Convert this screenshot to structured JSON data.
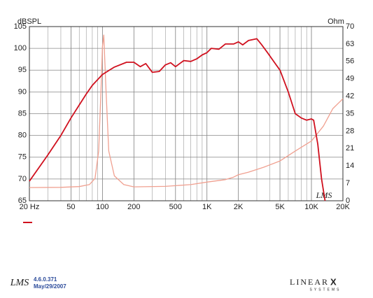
{
  "chart_data": {
    "type": "line",
    "log_x": true,
    "grid": true,
    "ylabel": "dBSPL",
    "y2label": "Ohm",
    "xlim": [
      20,
      20000
    ],
    "xticks": [
      {
        "value": 20,
        "label": "20  Hz"
      },
      50,
      100,
      200,
      500,
      {
        "value": 1000,
        "label": "1K"
      },
      {
        "value": 2000,
        "label": "2K"
      },
      {
        "value": 5000,
        "label": "5K"
      },
      {
        "value": 10000,
        "label": "10K"
      },
      {
        "value": 20000,
        "label": "20K"
      }
    ],
    "ylim": [
      65,
      105
    ],
    "yticks": [
      65,
      70,
      75,
      80,
      85,
      90,
      95,
      100,
      105
    ],
    "y2lim": [
      0,
      70
    ],
    "y2ticks": [
      0,
      7,
      14,
      21,
      28,
      35,
      42,
      49,
      56,
      63,
      70
    ],
    "series": [
      {
        "color": "#d0101e",
        "x": [
          20,
          30,
          40,
          50,
          60,
          70,
          80,
          100,
          130,
          170,
          200,
          230,
          260,
          300,
          350,
          400,
          450,
          500,
          600,
          700,
          800,
          900,
          1000,
          1100,
          1300,
          1500,
          1800,
          2000,
          2200,
          2500,
          3000,
          3300,
          3800,
          4500,
          5000,
          6000,
          7000,
          8000,
          9000,
          10000,
          10500,
          11500,
          12500,
          13500
        ],
        "values": [
          69.5,
          75.5,
          80,
          84,
          87,
          89.5,
          91.5,
          94,
          95.7,
          96.8,
          96.8,
          95.8,
          96.5,
          94.5,
          94.7,
          96.2,
          96.7,
          95.8,
          97.2,
          97,
          97.6,
          98.5,
          99,
          100,
          99.8,
          101,
          101,
          101.5,
          100.8,
          101.8,
          102.2,
          101,
          99,
          96.5,
          95,
          90,
          85,
          84,
          83.5,
          83.8,
          83.5,
          78,
          70,
          65
        ]
      },
      {
        "color": "#f0a090",
        "axis": "y2",
        "x": [
          20,
          40,
          60,
          75,
          85,
          92,
          97,
          100,
          103,
          108,
          115,
          130,
          160,
          200,
          400,
          700,
          1000,
          1500,
          1800,
          2000,
          2500,
          3500,
          5000,
          7000,
          10000,
          13000,
          16000,
          20000
        ],
        "values": [
          5.3,
          5.4,
          5.7,
          6.5,
          9,
          20,
          45,
          62,
          66.6,
          45,
          20,
          10,
          6.5,
          5.6,
          5.8,
          6.5,
          7.5,
          8.5,
          9.5,
          10.5,
          11.5,
          13.5,
          16,
          20,
          24,
          30,
          37,
          41
        ]
      }
    ],
    "watermark": "LMS"
  },
  "footer": {
    "app_logo": "LMS",
    "version": "4.6.0.371",
    "date": "May/29/2007",
    "brand": "LINEAR",
    "brand_mark": "X",
    "brand_sub": "SYSTEMS"
  }
}
